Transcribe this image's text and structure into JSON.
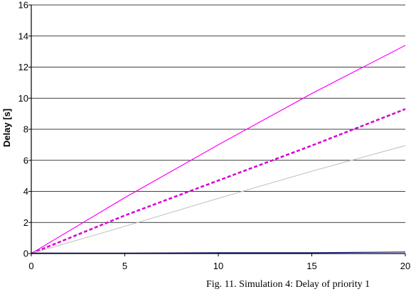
{
  "caption": "Fig. 11. Simulation 4: Delay of priority 1",
  "chart_data": {
    "type": "line",
    "xlabel": "",
    "ylabel": "Delay [s]",
    "xlim": [
      0,
      20
    ],
    "ylim": [
      0,
      16
    ],
    "x_ticks": [
      "0",
      "5",
      "10",
      "15",
      "20"
    ],
    "y_ticks": [
      "0",
      "2",
      "4",
      "6",
      "8",
      "10",
      "12",
      "14",
      "16"
    ],
    "grid": "horizontal",
    "legend": "none",
    "series": [
      {
        "color": "#ff00ff",
        "style": "solid",
        "x": [
          0,
          5,
          10,
          15,
          20
        ],
        "y": [
          0,
          3.6,
          7.0,
          10.3,
          13.4
        ]
      },
      {
        "color": "#d400d4",
        "style": "dashed",
        "x": [
          0,
          5,
          10,
          15,
          20
        ],
        "y": [
          0,
          2.45,
          4.7,
          6.95,
          9.3
        ]
      },
      {
        "color": "#c8c8c8",
        "style": "solid",
        "x": [
          0,
          5,
          10,
          15,
          20
        ],
        "y": [
          0,
          1.75,
          3.55,
          5.3,
          6.95
        ]
      },
      {
        "color": "#1a1a7a",
        "style": "solid",
        "x": [
          0,
          5,
          10,
          15,
          20
        ],
        "y": [
          0.03,
          0.03,
          0.05,
          0.05,
          0.1
        ]
      }
    ]
  }
}
